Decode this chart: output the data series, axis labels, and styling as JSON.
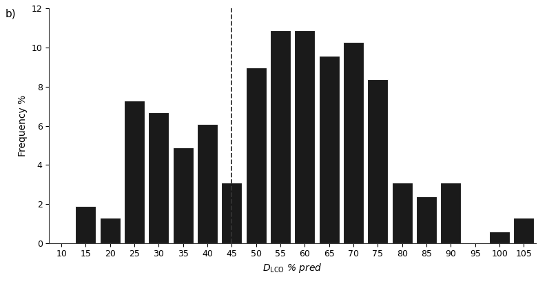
{
  "categories": [
    10,
    15,
    20,
    25,
    30,
    35,
    40,
    45,
    50,
    55,
    60,
    65,
    70,
    75,
    80,
    85,
    90,
    95,
    100,
    105
  ],
  "values": [
    0,
    1.9,
    1.3,
    7.3,
    6.7,
    4.9,
    6.1,
    3.1,
    9.0,
    10.9,
    10.9,
    9.6,
    10.3,
    8.4,
    3.1,
    2.4,
    3.1,
    0,
    0.6,
    1.3
  ],
  "bar_color": "#1a1a1a",
  "bar_edge_color": "#ffffff",
  "dashed_line_x": 45,
  "dashed_line_color": "#333333",
  "xlabel": "$D_\\mathrm{LCO}$ % pred",
  "ylabel": "Frequency %",
  "ylim": [
    0,
    12
  ],
  "yticks": [
    0,
    2,
    4,
    6,
    8,
    10,
    12
  ],
  "label_b": "b)",
  "bar_width": 4.6,
  "bar_gap": 0.35,
  "xlim": [
    7.5,
    107.5
  ],
  "background_color": "#ffffff",
  "tick_fontsize": 9,
  "label_fontsize": 10,
  "annotation_fontsize": 11
}
